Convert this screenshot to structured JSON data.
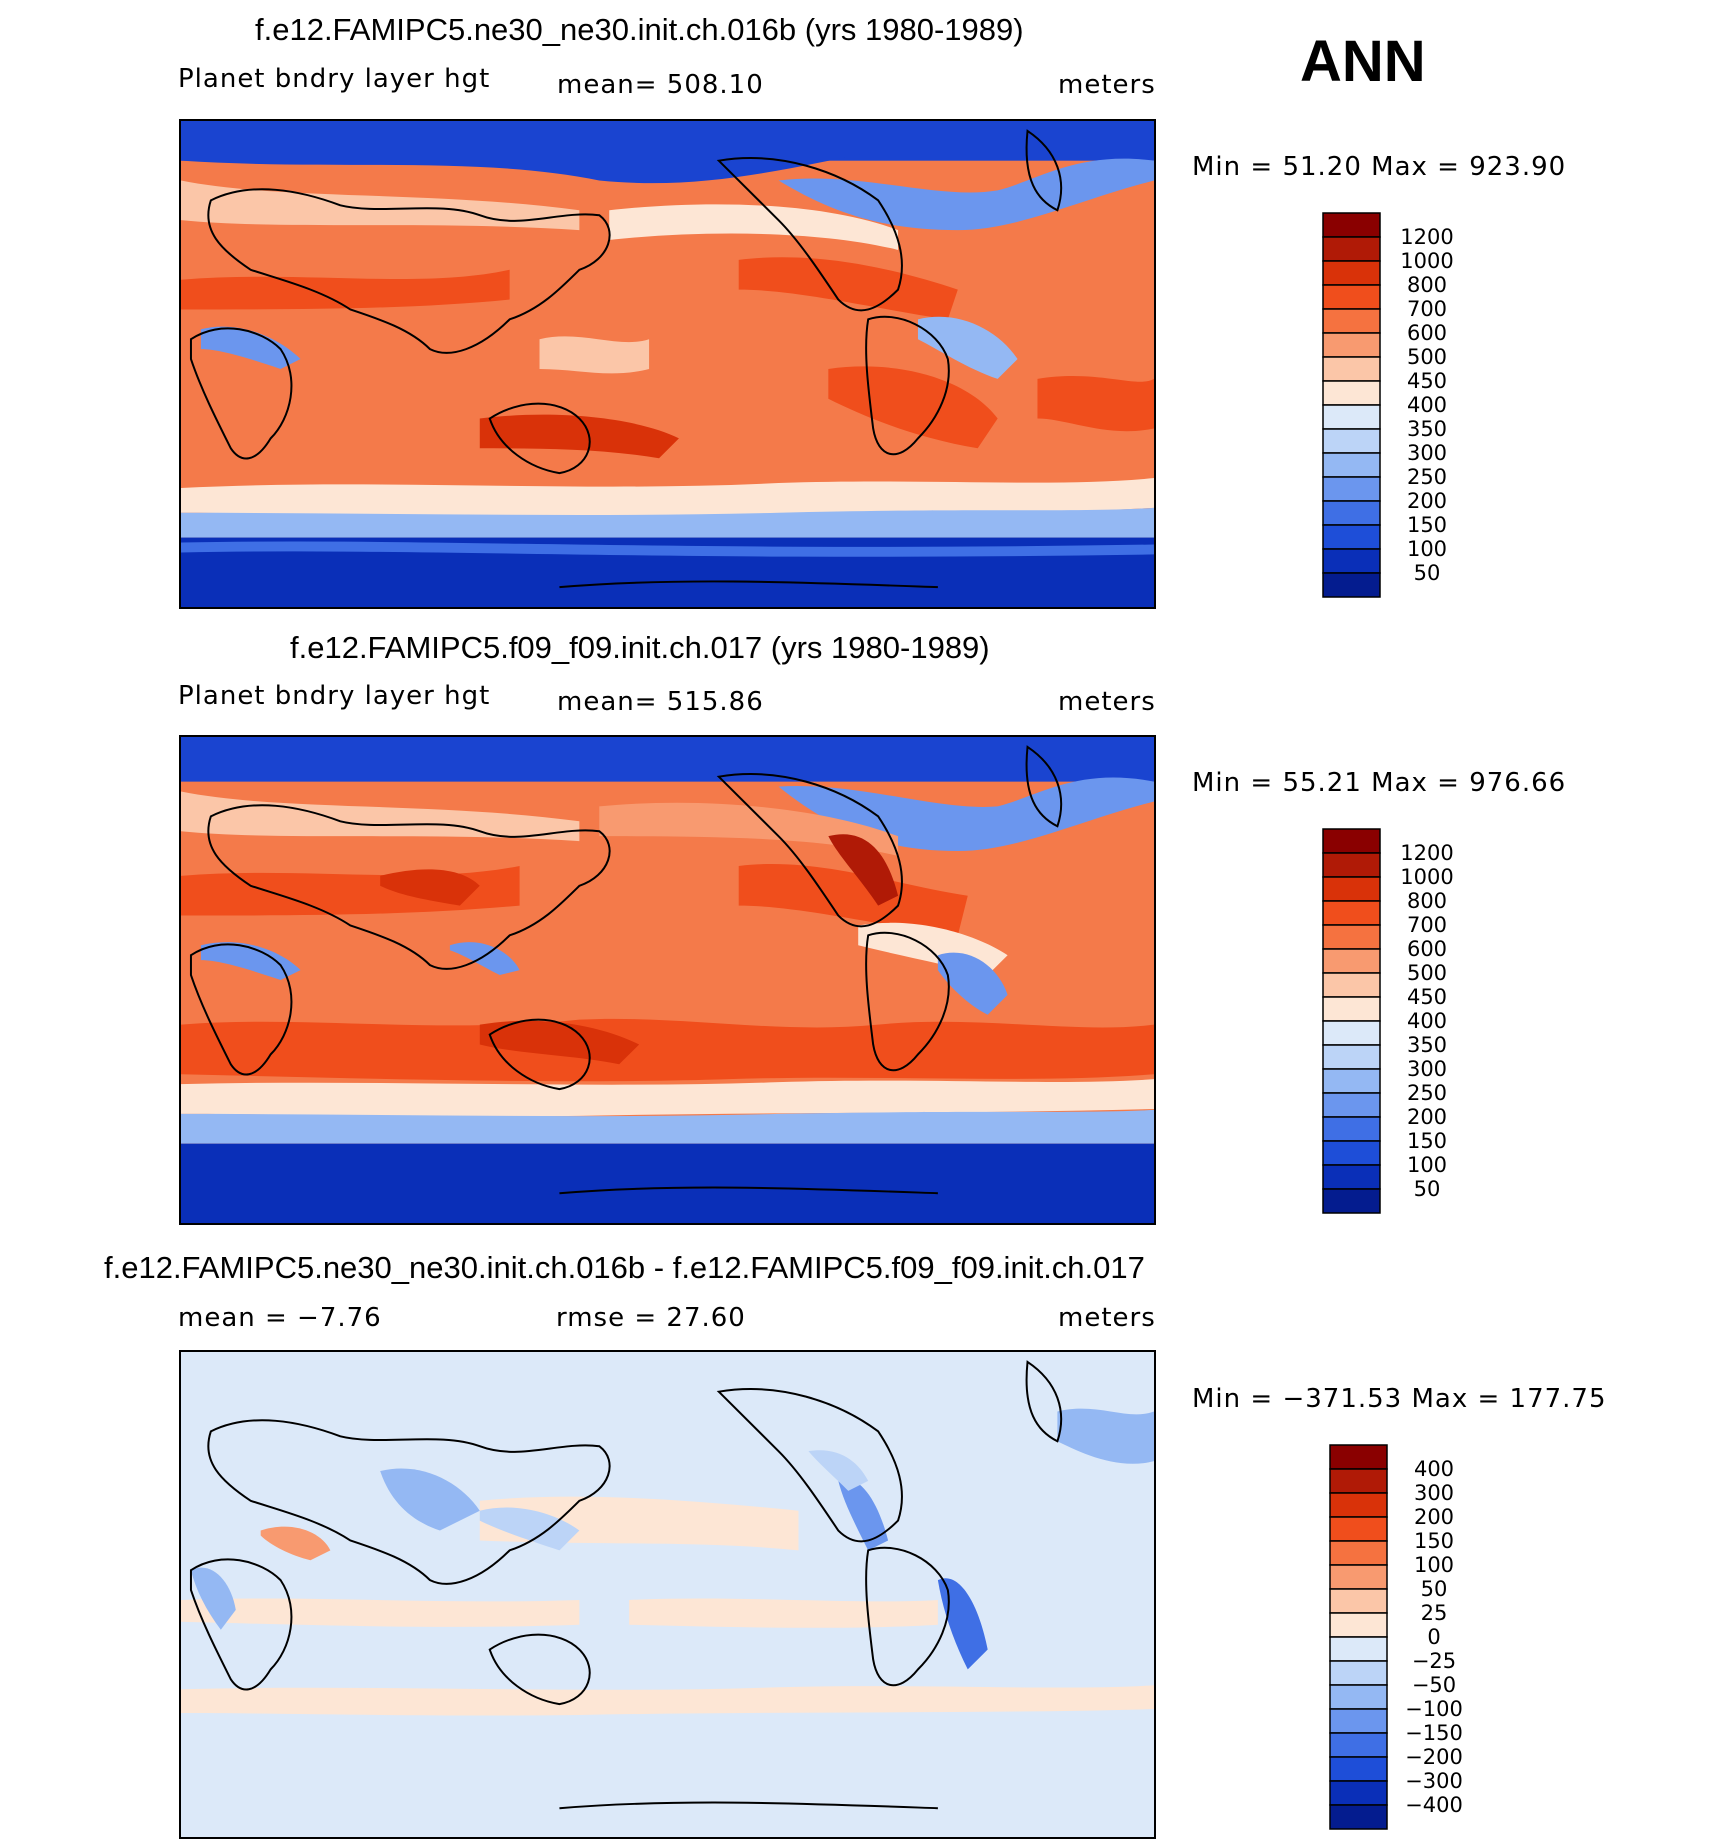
{
  "season": "ANN",
  "panels": [
    {
      "title": "f.e12.FAMIPC5.ne30_ne30.init.ch.016b (yrs 1980-1989)",
      "left_label": "Planet bndry layer hgt",
      "center_label": "mean=  508.10",
      "units": "meters",
      "minmax": "Min =   51.20 Max = 923.90",
      "colorbar_levels": [
        "1200",
        "1000",
        "800",
        "700",
        "600",
        "500",
        "450",
        "400",
        "350",
        "300",
        "250",
        "200",
        "150",
        "100",
        "50"
      ],
      "colorbar_colors": [
        "#8a0000",
        "#b01a06",
        "#d93209",
        "#f04e1c",
        "#f57240",
        "#f89a70",
        "#fbc6a8",
        "#fde6d5",
        "#dce9f9",
        "#bcd4f7",
        "#94b8f3",
        "#6b96ee",
        "#3f6fe5",
        "#1e4ed8",
        "#0a2fb8",
        "#041c8f"
      ],
      "chart_data": {
        "type": "heatmap",
        "title": "f.e12.FAMIPC5.ne30_ne30.init.ch.016b (yrs 1980-1989)",
        "variable": "Planet bndry layer hgt",
        "units": "meters",
        "mean": 508.1,
        "min": 51.2,
        "max": 923.9,
        "contour_levels": [
          50,
          100,
          150,
          200,
          250,
          300,
          350,
          400,
          450,
          500,
          600,
          700,
          800,
          1000,
          1200
        ]
      }
    },
    {
      "title": "f.e12.FAMIPC5.f09_f09.init.ch.017 (yrs 1980-1989)",
      "left_label": "Planet bndry layer hgt",
      "center_label": "mean=  515.86",
      "units": "meters",
      "minmax": "Min =   55.21 Max = 976.66",
      "colorbar_levels": [
        "1200",
        "1000",
        "800",
        "700",
        "600",
        "500",
        "450",
        "400",
        "350",
        "300",
        "250",
        "200",
        "150",
        "100",
        "50"
      ],
      "colorbar_colors": [
        "#8a0000",
        "#b01a06",
        "#d93209",
        "#f04e1c",
        "#f57240",
        "#f89a70",
        "#fbc6a8",
        "#fde6d5",
        "#dce9f9",
        "#bcd4f7",
        "#94b8f3",
        "#6b96ee",
        "#3f6fe5",
        "#1e4ed8",
        "#0a2fb8",
        "#041c8f"
      ],
      "chart_data": {
        "type": "heatmap",
        "title": "f.e12.FAMIPC5.f09_f09.init.ch.017 (yrs 1980-1989)",
        "variable": "Planet bndry layer hgt",
        "units": "meters",
        "mean": 515.86,
        "min": 55.21,
        "max": 976.66,
        "contour_levels": [
          50,
          100,
          150,
          200,
          250,
          300,
          350,
          400,
          450,
          500,
          600,
          700,
          800,
          1000,
          1200
        ]
      }
    },
    {
      "title": "f.e12.FAMIPC5.ne30_ne30.init.ch.016b - f.e12.FAMIPC5.f09_f09.init.ch.017",
      "left_label": "mean =   −7.76",
      "center_label": "rmse =   27.60",
      "units": "meters",
      "minmax": "Min = −371.53 Max = 177.75",
      "colorbar_levels": [
        "400",
        "300",
        "200",
        "150",
        "100",
        "50",
        "25",
        "0",
        "−25",
        "−50",
        "−100",
        "−150",
        "−200",
        "−300",
        "−400"
      ],
      "colorbar_colors": [
        "#8a0000",
        "#b01a06",
        "#d93209",
        "#f04e1c",
        "#f57240",
        "#f89a70",
        "#fbc6a8",
        "#fde6d5",
        "#dce9f9",
        "#bcd4f7",
        "#94b8f3",
        "#6b96ee",
        "#3f6fe5",
        "#1e4ed8",
        "#0a2fb8",
        "#041c8f"
      ],
      "chart_data": {
        "type": "heatmap",
        "title": "f.e12.FAMIPC5.ne30_ne30.init.ch.016b - f.e12.FAMIPC5.f09_f09.init.ch.017",
        "units": "meters",
        "mean": -7.76,
        "rmse": 27.6,
        "min": -371.53,
        "max": 177.75,
        "contour_levels": [
          -400,
          -300,
          -200,
          -150,
          -100,
          -50,
          -25,
          0,
          25,
          50,
          100,
          150,
          200,
          300,
          400
        ]
      }
    }
  ],
  "chart_data": [
    {
      "type": "heatmap",
      "title": "f.e12.FAMIPC5.ne30_ne30.init.ch.016b (yrs 1980-1989)",
      "units": "meters",
      "mean": 508.1,
      "min": 51.2,
      "max": 923.9
    },
    {
      "type": "heatmap",
      "title": "f.e12.FAMIPC5.f09_f09.init.ch.017 (yrs 1980-1989)",
      "units": "meters",
      "mean": 515.86,
      "min": 55.21,
      "max": 976.66
    },
    {
      "type": "heatmap",
      "title": "f.e12.FAMIPC5.ne30_ne30.init.ch.016b - f.e12.FAMIPC5.f09_f09.init.ch.017",
      "units": "meters",
      "mean": -7.76,
      "rmse": 27.6,
      "min": -371.53,
      "max": 177.75
    }
  ]
}
